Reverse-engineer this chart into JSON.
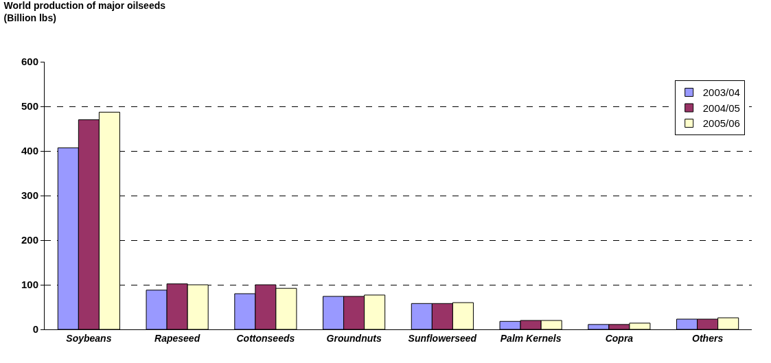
{
  "chart_data": {
    "type": "bar",
    "title": "World production of major oilseeds",
    "subtitle": "(Billion lbs)",
    "categories": [
      "Soybeans",
      "Rapeseed",
      "Cottonseeds",
      "Groundnuts",
      "Sunflowerseed",
      "Palm Kernels",
      "Copra",
      "Others"
    ],
    "series": [
      {
        "name": "2003/04",
        "color": "#9999ff",
        "values": [
          407,
          88,
          80,
          74,
          58,
          18,
          11,
          23
        ]
      },
      {
        "name": "2004/05",
        "color": "#993366",
        "values": [
          470,
          102,
          100,
          74,
          58,
          20,
          11,
          23
        ]
      },
      {
        "name": "2005/06",
        "color": "#ffffcc",
        "values": [
          487,
          100,
          92,
          77,
          60,
          20,
          14,
          26
        ]
      }
    ],
    "ylim": [
      0,
      600
    ],
    "yticks": [
      0,
      100,
      200,
      300,
      400,
      500,
      600
    ],
    "grid": "y",
    "legend": "top right"
  }
}
